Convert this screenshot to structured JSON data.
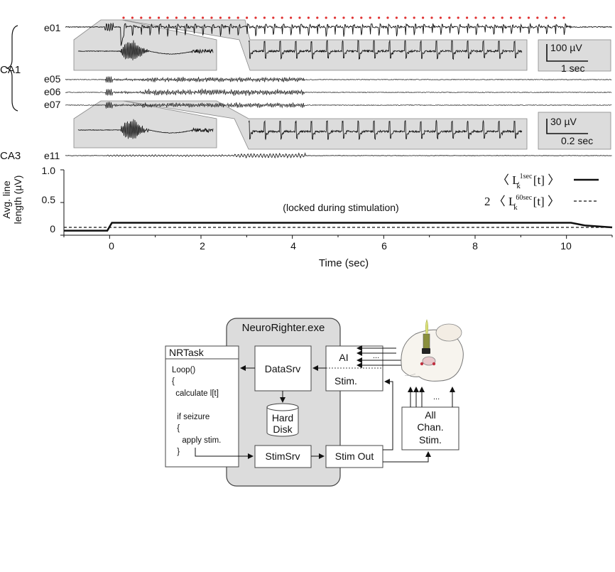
{
  "traces": {
    "region_ca1": "CA1",
    "region_ca3": "CA3",
    "electrodes": [
      "e01",
      "e05",
      "e06",
      "e07",
      "e11"
    ],
    "scalebar_top": {
      "amplitude": "100 µV",
      "time": "1 sec"
    },
    "scalebar_bottom": {
      "amplitude": "30 µV",
      "time": "0.2 sec"
    }
  },
  "chart_data": {
    "type": "line",
    "ylabel_line1": "Avg. line",
    "ylabel_line2": "length (µV)",
    "xlabel": "Time (sec)",
    "xlim": [
      -1,
      11
    ],
    "ylim": [
      0,
      1.0
    ],
    "x_ticks": [
      "0",
      "2",
      "4",
      "6",
      "8",
      "10"
    ],
    "y_ticks": [
      "0",
      "0.5",
      "1.0"
    ],
    "annotation": "(locked during stimulation)",
    "legend_position": "top-right",
    "series": [
      {
        "name_prefix": "〈 L",
        "name_super": "1sec",
        "name_sub": "k",
        "name_suffix": "[t] 〉",
        "style": "solid",
        "x": [
          -1,
          -0.05,
          0.0,
          0.05,
          10.1,
          10.4,
          11
        ],
        "y": [
          0.07,
          0.07,
          0.13,
          0.19,
          0.19,
          0.15,
          0.12
        ]
      },
      {
        "name_prefix": "2 〈 L",
        "name_super": "60sec",
        "name_sub": "k",
        "name_suffix": "[t] 〉",
        "style": "dashed",
        "x": [
          -1,
          11
        ],
        "y": [
          0.12,
          0.12
        ]
      }
    ]
  },
  "diagram": {
    "app_title": "NeuroRighter.exe",
    "nrtask": {
      "title": "NRTask",
      "code_lines": [
        "Loop()",
        "{",
        " calculate l[t]",
        "",
        " if seizure",
        " {",
        "  apply stim.",
        " }"
      ]
    },
    "datasrv": "DataSrv",
    "harddisk_line1": "Hard",
    "harddisk_line2": "Disk",
    "stimsrv": "StimSrv",
    "ai": "AI",
    "ai_dots": "...",
    "stim": "Stim.",
    "stimout": "Stim Out",
    "allchan_line1": "All",
    "allchan_line2": "Chan.",
    "allchan_line3": "Stim.",
    "allchan_dots": "..."
  }
}
